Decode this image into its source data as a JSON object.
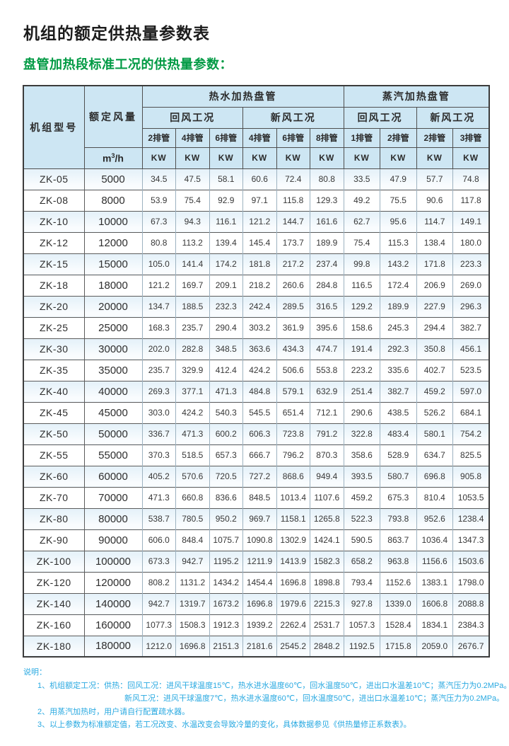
{
  "title": "机组的额定供热量参数表",
  "subtitle": "盘管加热段标准工况的供热量参数：",
  "colors": {
    "subtitle_green": "#009a44",
    "notes_blue": "#29a9e1",
    "table_header_blue": "#cde6f3",
    "row_stripe_blue": "#e4f1f9"
  },
  "table": {
    "model_header": "机组型号",
    "airflow_header": "额定风量",
    "airflow_unit_base": "m",
    "airflow_unit_sup": "3",
    "airflow_unit_rest": "/h",
    "kw_label": "KW",
    "groups": [
      {
        "label": "热水加热盘管",
        "span": 6
      },
      {
        "label": "蒸汽加热盘管",
        "span": 4
      }
    ],
    "conditions": [
      {
        "label": "回风工况",
        "span": 3
      },
      {
        "label": "新风工况",
        "span": 3
      },
      {
        "label": "回风工况",
        "span": 2
      },
      {
        "label": "新风工况",
        "span": 2
      }
    ],
    "coil_counts": [
      "2排管",
      "4排管",
      "6排管",
      "4排管",
      "6排管",
      "8排管",
      "1排管",
      "2排管",
      "2排管",
      "3排管"
    ],
    "rows": [
      {
        "model": "ZK-05",
        "airflow": "5000",
        "values": [
          "34.5",
          "47.5",
          "58.1",
          "60.6",
          "72.4",
          "80.8",
          "33.5",
          "47.9",
          "57.7",
          "74.8"
        ]
      },
      {
        "model": "ZK-08",
        "airflow": "8000",
        "values": [
          "53.9",
          "75.4",
          "92.9",
          "97.1",
          "115.8",
          "129.3",
          "49.2",
          "75.5",
          "90.6",
          "117.8"
        ]
      },
      {
        "model": "ZK-10",
        "airflow": "10000",
        "values": [
          "67.3",
          "94.3",
          "116.1",
          "121.2",
          "144.7",
          "161.6",
          "62.7",
          "95.6",
          "114.7",
          "149.1"
        ]
      },
      {
        "model": "ZK-12",
        "airflow": "12000",
        "values": [
          "80.8",
          "113.2",
          "139.4",
          "145.4",
          "173.7",
          "189.9",
          "75.4",
          "115.3",
          "138.4",
          "180.0"
        ]
      },
      {
        "model": "ZK-15",
        "airflow": "15000",
        "values": [
          "105.0",
          "141.4",
          "174.2",
          "181.8",
          "217.2",
          "237.4",
          "99.8",
          "143.2",
          "171.8",
          "223.3"
        ]
      },
      {
        "model": "ZK-18",
        "airflow": "18000",
        "values": [
          "121.2",
          "169.7",
          "209.1",
          "218.2",
          "260.6",
          "284.8",
          "116.5",
          "172.4",
          "206.9",
          "269.0"
        ]
      },
      {
        "model": "ZK-20",
        "airflow": "20000",
        "values": [
          "134.7",
          "188.5",
          "232.3",
          "242.4",
          "289.5",
          "316.5",
          "129.2",
          "189.9",
          "227.9",
          "296.3"
        ]
      },
      {
        "model": "ZK-25",
        "airflow": "25000",
        "values": [
          "168.3",
          "235.7",
          "290.4",
          "303.2",
          "361.9",
          "395.6",
          "158.6",
          "245.3",
          "294.4",
          "382.7"
        ]
      },
      {
        "model": "ZK-30",
        "airflow": "30000",
        "values": [
          "202.0",
          "282.8",
          "348.5",
          "363.6",
          "434.3",
          "474.7",
          "191.4",
          "292.3",
          "350.8",
          "456.1"
        ]
      },
      {
        "model": "ZK-35",
        "airflow": "35000",
        "values": [
          "235.7",
          "329.9",
          "412.4",
          "424.2",
          "506.6",
          "553.8",
          "223.2",
          "335.6",
          "402.7",
          "523.5"
        ]
      },
      {
        "model": "ZK-40",
        "airflow": "40000",
        "values": [
          "269.3",
          "377.1",
          "471.3",
          "484.8",
          "579.1",
          "632.9",
          "251.4",
          "382.7",
          "459.2",
          "597.0"
        ]
      },
      {
        "model": "ZK-45",
        "airflow": "45000",
        "values": [
          "303.0",
          "424.2",
          "540.3",
          "545.5",
          "651.4",
          "712.1",
          "290.6",
          "438.5",
          "526.2",
          "684.1"
        ]
      },
      {
        "model": "ZK-50",
        "airflow": "50000",
        "values": [
          "336.7",
          "471.3",
          "600.2",
          "606.3",
          "723.8",
          "791.2",
          "322.8",
          "483.4",
          "580.1",
          "754.2"
        ]
      },
      {
        "model": "ZK-55",
        "airflow": "55000",
        "values": [
          "370.3",
          "518.5",
          "657.3",
          "666.7",
          "796.2",
          "870.3",
          "358.6",
          "528.9",
          "634.7",
          "825.5"
        ]
      },
      {
        "model": "ZK-60",
        "airflow": "60000",
        "values": [
          "405.2",
          "570.6",
          "720.5",
          "727.2",
          "868.6",
          "949.4",
          "393.5",
          "580.7",
          "696.8",
          "905.8"
        ]
      },
      {
        "model": "ZK-70",
        "airflow": "70000",
        "values": [
          "471.3",
          "660.8",
          "836.6",
          "848.5",
          "1013.4",
          "1107.6",
          "459.2",
          "675.3",
          "810.4",
          "1053.5"
        ]
      },
      {
        "model": "ZK-80",
        "airflow": "80000",
        "values": [
          "538.7",
          "780.5",
          "950.2",
          "969.7",
          "1158.1",
          "1265.8",
          "522.3",
          "793.8",
          "952.6",
          "1238.4"
        ]
      },
      {
        "model": "ZK-90",
        "airflow": "90000",
        "values": [
          "606.0",
          "848.4",
          "1075.7",
          "1090.8",
          "1302.9",
          "1424.1",
          "590.5",
          "863.7",
          "1036.4",
          "1347.3"
        ]
      },
      {
        "model": "ZK-100",
        "airflow": "100000",
        "values": [
          "673.3",
          "942.7",
          "1195.2",
          "1211.9",
          "1413.9",
          "1582.3",
          "658.2",
          "963.8",
          "1156.6",
          "1503.6"
        ]
      },
      {
        "model": "ZK-120",
        "airflow": "120000",
        "values": [
          "808.2",
          "1131.2",
          "1434.2",
          "1454.4",
          "1696.8",
          "1898.8",
          "793.4",
          "1152.6",
          "1383.1",
          "1798.0"
        ]
      },
      {
        "model": "ZK-140",
        "airflow": "140000",
        "values": [
          "942.7",
          "1319.7",
          "1673.2",
          "1696.8",
          "1979.6",
          "2215.3",
          "927.8",
          "1339.0",
          "1606.8",
          "2088.8"
        ]
      },
      {
        "model": "ZK-160",
        "airflow": "160000",
        "values": [
          "1077.3",
          "1508.3",
          "1912.3",
          "1939.2",
          "2262.4",
          "2531.7",
          "1057.3",
          "1528.4",
          "1834.1",
          "2384.3"
        ]
      },
      {
        "model": "ZK-180",
        "airflow": "180000",
        "values": [
          "1212.0",
          "1696.8",
          "2151.3",
          "2181.6",
          "2545.2",
          "2848.2",
          "1192.5",
          "1715.8",
          "2059.0",
          "2676.7"
        ]
      }
    ]
  },
  "notes": {
    "label": "说明：",
    "item1_line1": "1、机组额定工况：供热：回风工况：进风干球温度15℃，热水进水温度60℃，回水温度50℃，进出口水温差10℃；蒸汽压力为0.2MPa。",
    "item1_line2": "新风工况：进风干球温度7℃，热水进水温度60℃，回水温度50℃，进出口水温差10℃；蒸汽压力为0.2MPa。",
    "item2": "2、用蒸汽加热时，用户请自行配置疏水器。",
    "item3": "3、以上参数为标准额定值，若工况改变、水温改变会导致冷量的变化，具体数据参见《供热量修正系数表》。"
  }
}
